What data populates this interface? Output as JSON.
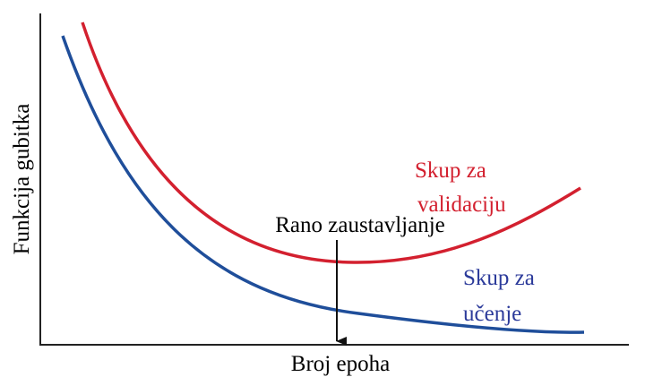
{
  "diagram": {
    "y_axis_label": "Funkcija gubitka",
    "x_axis_label": "Broj epoha",
    "validation_label": [
      "Skup za",
      "validaciju"
    ],
    "training_label": [
      "Skup za",
      "učenje"
    ],
    "annotation": "Rano zaustavljanje"
  }
}
